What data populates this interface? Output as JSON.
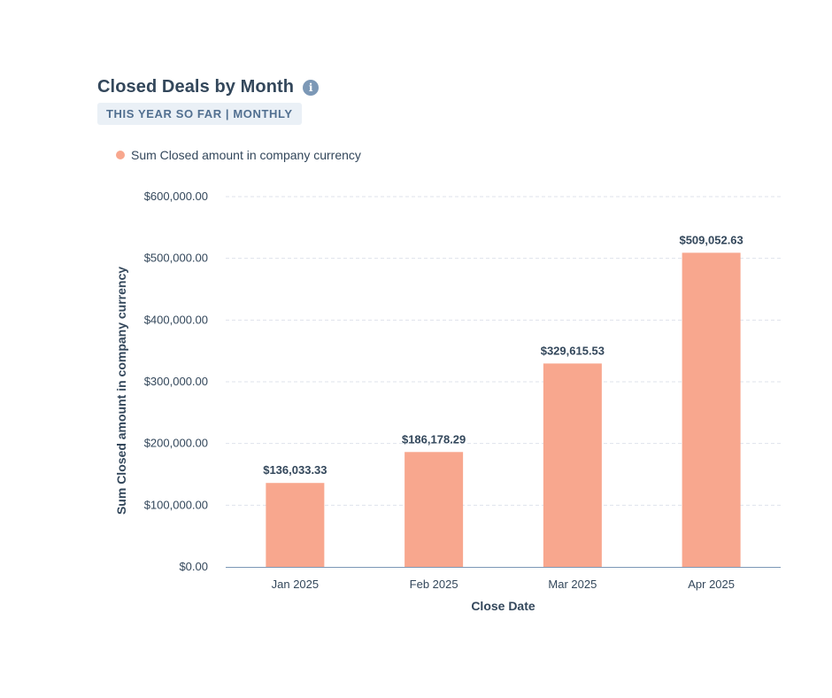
{
  "header": {
    "title": "Closed Deals by Month",
    "info_icon": "info-icon",
    "badge": "THIS YEAR SO FAR | MONTHLY"
  },
  "legend": {
    "label": "Sum Closed amount in company currency"
  },
  "colors": {
    "bar": "#f8a78e",
    "grid": "#dfe3eb",
    "axis": "#7c98b6",
    "text": "#33475b"
  },
  "chart_data": {
    "type": "bar",
    "categories": [
      "Jan 2025",
      "Feb 2025",
      "Mar 2025",
      "Apr 2025"
    ],
    "series": [
      {
        "name": "Sum Closed amount in company currency",
        "values": [
          136033.33,
          186178.29,
          329615.53,
          509052.63
        ],
        "value_labels": [
          "$136,033.33",
          "$186,178.29",
          "$329,615.53",
          "$509,052.63"
        ]
      }
    ],
    "title": "Closed Deals by Month",
    "xlabel": "Close Date",
    "ylabel": "Sum Closed amount in company currency",
    "ylim": [
      0,
      600000
    ],
    "yticks": [
      0,
      100000,
      200000,
      300000,
      400000,
      500000,
      600000
    ],
    "ytick_labels": [
      "$0.00",
      "$100,000.00",
      "$200,000.00",
      "$300,000.00",
      "$400,000.00",
      "$500,000.00",
      "$600,000.00"
    ],
    "grid": true,
    "legend_position": "top-left"
  }
}
